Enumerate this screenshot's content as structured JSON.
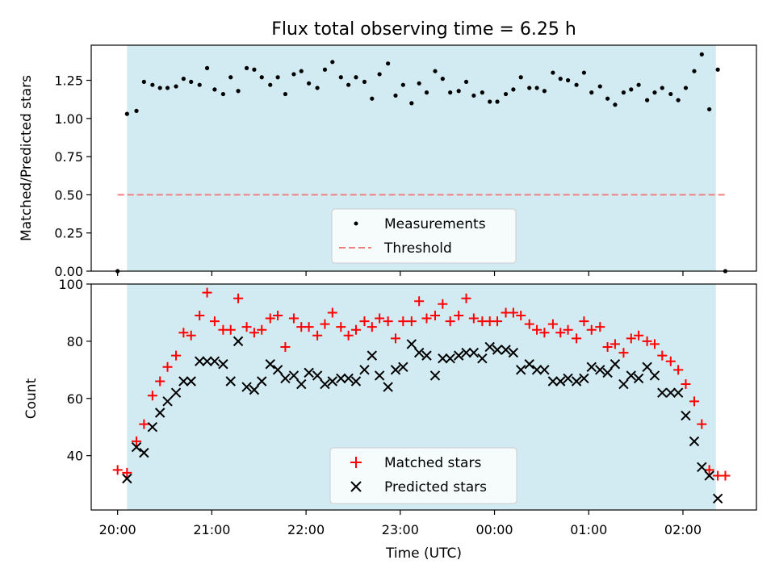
{
  "chart_data": [
    {
      "type": "scatter",
      "title": "Flux total observing time = 6.25 h",
      "ylabel": "Matched/Predicted stars",
      "xlabel": "",
      "ylim": [
        0,
        1.48
      ],
      "yticks": [
        "0.00",
        "0.25",
        "0.50",
        "0.75",
        "1.00",
        "1.25"
      ],
      "shaded_region": [
        0.1,
        6.35
      ],
      "colors": {
        "shade": "#add8e6",
        "points": "#000000",
        "threshold": "#f08080"
      },
      "legend": [
        "Measurements",
        "Threshold"
      ],
      "legend_position": "lower center",
      "threshold": {
        "name": "Threshold",
        "value": 0.5,
        "x": [
          0.0,
          6.45
        ]
      },
      "series": [
        {
          "name": "Measurements",
          "x": [
            0.0,
            0.1,
            0.2,
            0.28,
            0.37,
            0.45,
            0.53,
            0.62,
            0.7,
            0.78,
            0.87,
            0.95,
            1.03,
            1.12,
            1.2,
            1.28,
            1.37,
            1.45,
            1.53,
            1.62,
            1.7,
            1.78,
            1.87,
            1.95,
            2.03,
            2.12,
            2.2,
            2.28,
            2.37,
            2.45,
            2.53,
            2.62,
            2.7,
            2.78,
            2.87,
            2.95,
            3.03,
            3.12,
            3.2,
            3.28,
            3.37,
            3.45,
            3.53,
            3.62,
            3.7,
            3.78,
            3.87,
            3.95,
            4.03,
            4.12,
            4.2,
            4.28,
            4.37,
            4.45,
            4.53,
            4.62,
            4.7,
            4.78,
            4.87,
            4.95,
            5.03,
            5.12,
            5.2,
            5.28,
            5.37,
            5.45,
            5.53,
            5.62,
            5.7,
            5.78,
            5.87,
            5.95,
            6.03,
            6.12,
            6.2,
            6.28,
            6.37,
            6.45
          ],
          "y": [
            0.0,
            1.03,
            1.05,
            1.24,
            1.22,
            1.2,
            1.2,
            1.21,
            1.26,
            1.24,
            1.22,
            1.33,
            1.19,
            1.16,
            1.27,
            1.18,
            1.33,
            1.32,
            1.27,
            1.22,
            1.27,
            1.16,
            1.29,
            1.31,
            1.23,
            1.2,
            1.32,
            1.37,
            1.27,
            1.22,
            1.27,
            1.24,
            1.13,
            1.29,
            1.36,
            1.15,
            1.22,
            1.1,
            1.23,
            1.17,
            1.31,
            1.26,
            1.17,
            1.18,
            1.24,
            1.15,
            1.17,
            1.11,
            1.11,
            1.16,
            1.19,
            1.27,
            1.2,
            1.2,
            1.18,
            1.3,
            1.26,
            1.25,
            1.22,
            1.3,
            1.17,
            1.21,
            1.13,
            1.09,
            1.17,
            1.19,
            1.22,
            1.12,
            1.17,
            1.2,
            1.16,
            1.12,
            1.2,
            1.31,
            1.42,
            1.06,
            1.32,
            0.0
          ]
        }
      ]
    },
    {
      "type": "scatter",
      "title": "",
      "ylabel": "Count",
      "xlabel": "Time (UTC)",
      "ylim": [
        21,
        100
      ],
      "yticks": [
        "40",
        "60",
        "80",
        "100"
      ],
      "xlim": [
        -0.28,
        6.78
      ],
      "xticks": [
        "20:00",
        "21:00",
        "22:00",
        "23:00",
        "00:00",
        "01:00",
        "02:00"
      ],
      "shaded_region": [
        0.1,
        6.35
      ],
      "colors": {
        "shade": "#add8e6",
        "matched": "#ff0000",
        "predicted": "#000000"
      },
      "legend": [
        "Matched stars",
        "Predicted stars"
      ],
      "legend_position": "lower center",
      "series": [
        {
          "name": "Matched stars",
          "x": [
            0.0,
            0.1,
            0.2,
            0.28,
            0.37,
            0.45,
            0.53,
            0.62,
            0.7,
            0.78,
            0.87,
            0.95,
            1.03,
            1.12,
            1.2,
            1.28,
            1.37,
            1.45,
            1.53,
            1.62,
            1.7,
            1.78,
            1.87,
            1.95,
            2.03,
            2.12,
            2.2,
            2.28,
            2.37,
            2.45,
            2.53,
            2.62,
            2.7,
            2.78,
            2.87,
            2.95,
            3.03,
            3.12,
            3.2,
            3.28,
            3.37,
            3.45,
            3.53,
            3.62,
            3.7,
            3.78,
            3.87,
            3.95,
            4.03,
            4.12,
            4.2,
            4.28,
            4.37,
            4.45,
            4.53,
            4.62,
            4.7,
            4.78,
            4.87,
            4.95,
            5.03,
            5.12,
            5.2,
            5.28,
            5.37,
            5.45,
            5.53,
            5.62,
            5.7,
            5.78,
            5.87,
            5.95,
            6.03,
            6.12,
            6.2,
            6.28,
            6.37,
            6.45
          ],
          "y": [
            35,
            34,
            45,
            51,
            61,
            66,
            71,
            75,
            83,
            82,
            89,
            97,
            87,
            84,
            84,
            95,
            85,
            83,
            84,
            88,
            89,
            78,
            88,
            85,
            85,
            82,
            86,
            90,
            85,
            82,
            84,
            87,
            85,
            88,
            87,
            81,
            87,
            87,
            94,
            88,
            89,
            93,
            87,
            89,
            95,
            88,
            87,
            87,
            87,
            90,
            90,
            89,
            86,
            84,
            83,
            86,
            83,
            84,
            81,
            87,
            84,
            85,
            78,
            79,
            76,
            81,
            82,
            80,
            79,
            75,
            73,
            70,
            65,
            59,
            51,
            35,
            33,
            33
          ]
        },
        {
          "name": "Predicted stars",
          "x": [
            0.1,
            0.2,
            0.28,
            0.37,
            0.45,
            0.53,
            0.62,
            0.7,
            0.78,
            0.87,
            0.95,
            1.03,
            1.12,
            1.2,
            1.28,
            1.37,
            1.45,
            1.53,
            1.62,
            1.7,
            1.78,
            1.87,
            1.95,
            2.03,
            2.12,
            2.2,
            2.28,
            2.37,
            2.45,
            2.53,
            2.62,
            2.7,
            2.78,
            2.87,
            2.95,
            3.03,
            3.12,
            3.2,
            3.28,
            3.37,
            3.45,
            3.53,
            3.62,
            3.7,
            3.78,
            3.87,
            3.95,
            4.03,
            4.12,
            4.2,
            4.28,
            4.37,
            4.45,
            4.53,
            4.62,
            4.7,
            4.78,
            4.87,
            4.95,
            5.03,
            5.12,
            5.2,
            5.28,
            5.37,
            5.45,
            5.53,
            5.62,
            5.7,
            5.78,
            5.87,
            5.95,
            6.03,
            6.12,
            6.2,
            6.28,
            6.37
          ],
          "y": [
            32,
            43,
            41,
            50,
            55,
            59,
            62,
            66,
            66,
            73,
            73,
            73,
            72,
            66,
            80,
            64,
            63,
            66,
            72,
            70,
            67,
            68,
            65,
            69,
            68,
            65,
            66,
            67,
            67,
            66,
            70,
            75,
            68,
            64,
            70,
            71,
            79,
            76,
            75,
            68,
            74,
            74,
            75,
            76,
            76,
            74,
            78,
            77,
            77,
            76,
            70,
            72,
            70,
            70,
            66,
            66,
            67,
            66,
            67,
            71,
            70,
            69,
            72,
            65,
            68,
            67,
            71,
            68,
            62,
            62,
            62,
            54,
            45,
            36,
            33,
            25
          ]
        }
      ]
    }
  ]
}
